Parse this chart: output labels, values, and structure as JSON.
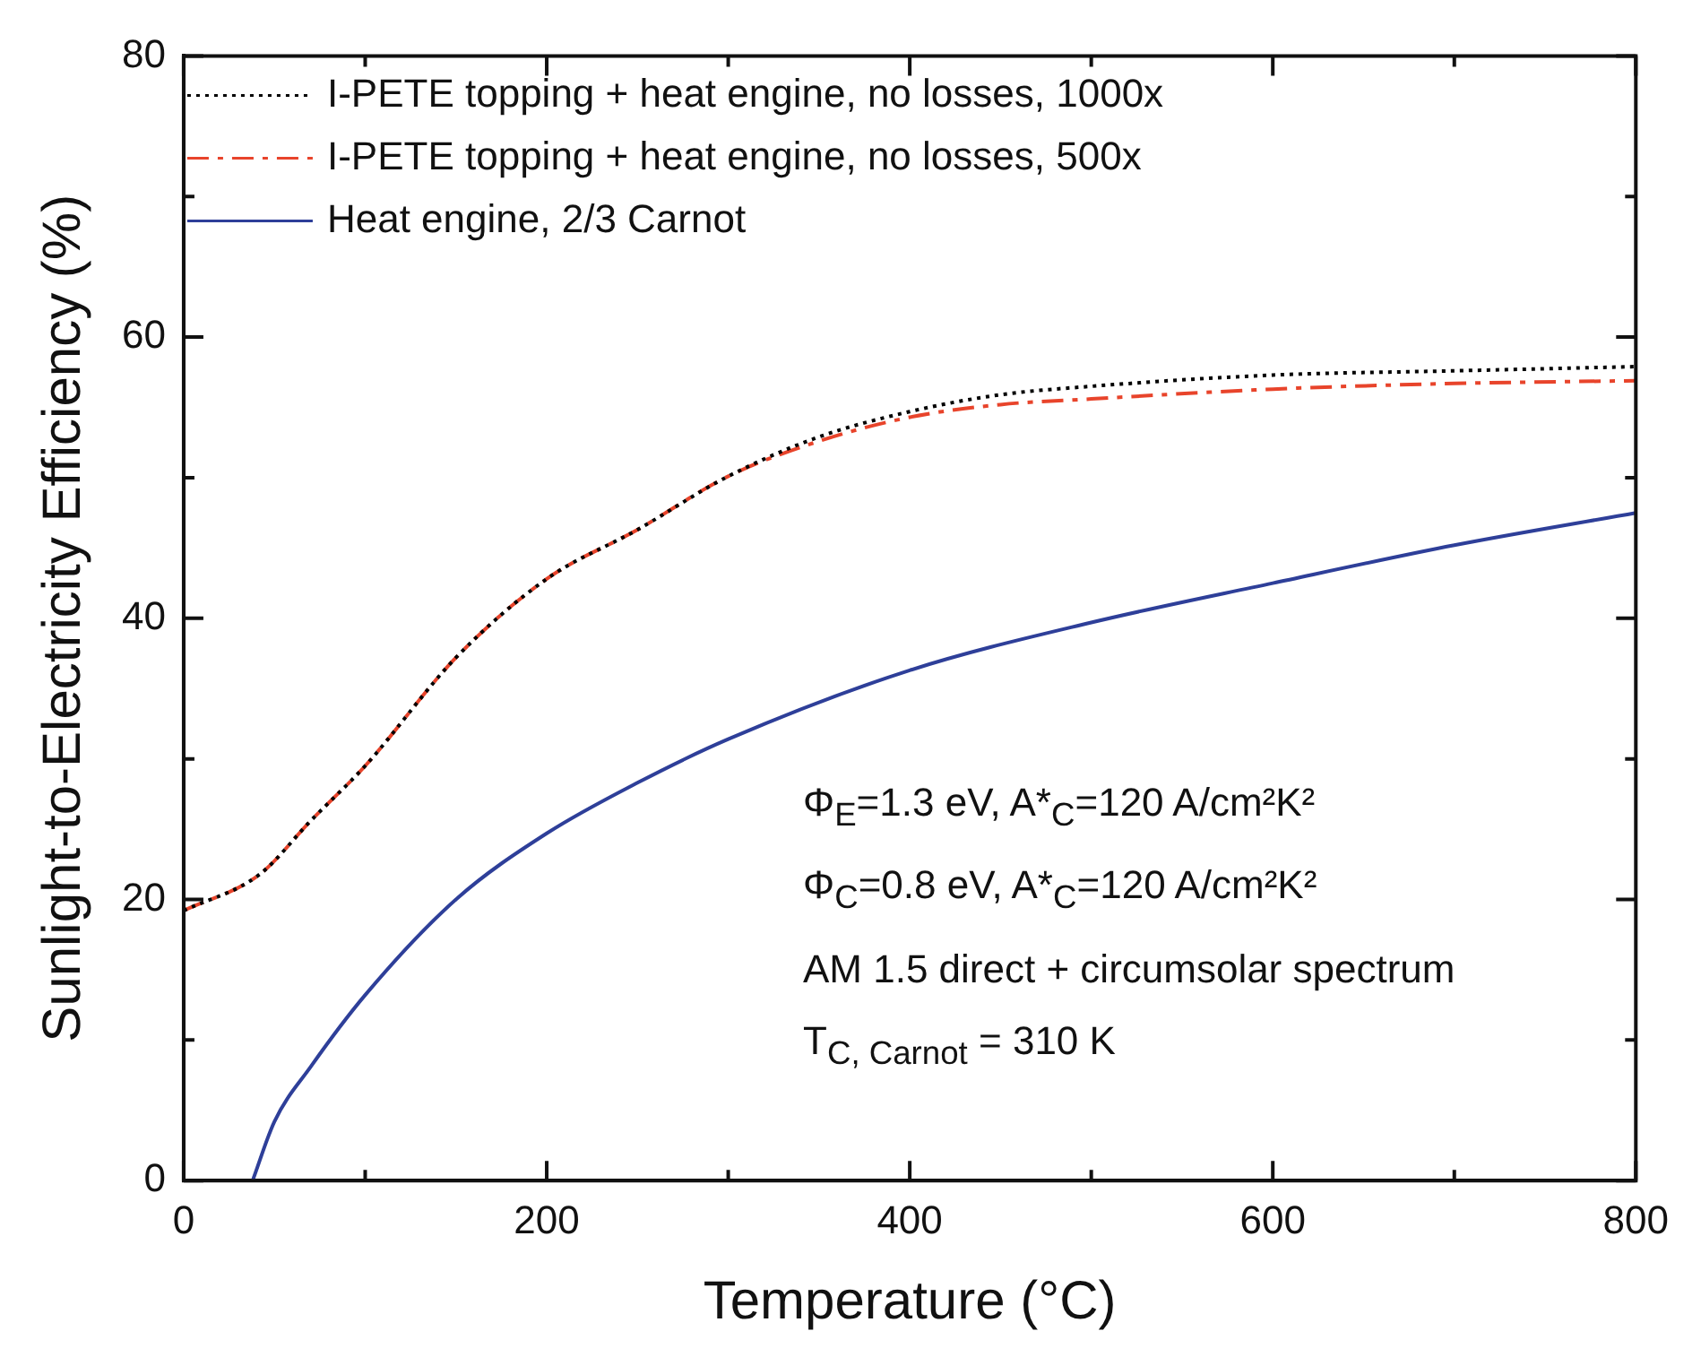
{
  "chart_data": {
    "type": "line",
    "xlabel": "Temperature (°C)",
    "ylabel": "Sunlight-to-Electricity Efficiency (%)",
    "xlim": [
      0,
      800
    ],
    "ylim": [
      0,
      80
    ],
    "xticks": [
      0,
      {
        "value": 100,
        "label": null
      },
      200,
      {
        "value": 300,
        "label": null
      },
      400,
      {
        "value": 500,
        "label": null
      },
      600,
      {
        "value": 700,
        "label": null
      },
      800
    ],
    "yticks": [
      0,
      {
        "value": 10,
        "label": null
      },
      20,
      {
        "value": 30,
        "label": null
      },
      40,
      {
        "value": 50,
        "label": null
      },
      60,
      {
        "value": 70,
        "label": null
      },
      80
    ],
    "legend": "top left",
    "marker": "none",
    "series": [
      {
        "name": "I-PETE topping + heat engine, no losses, 1000x",
        "color": "#000000",
        "line_style": "dotted",
        "x": [
          0,
          42,
          70,
          100,
          150,
          200,
          250,
          300,
          350,
          400,
          450,
          500,
          600,
          700,
          800
        ],
        "values": [
          19.2,
          21.8,
          25.6,
          29.5,
          37.2,
          42.8,
          46.3,
          50.1,
          52.9,
          54.7,
          55.9,
          56.5,
          57.3,
          57.6,
          57.9
        ]
      },
      {
        "name": "I-PETE topping + heat engine, no losses, 500x",
        "color": "#e8442b",
        "line_style": "dashed",
        "x": [
          0,
          42,
          70,
          100,
          150,
          200,
          250,
          300,
          350,
          400,
          450,
          500,
          600,
          700,
          800
        ],
        "values": [
          19.2,
          21.8,
          25.6,
          29.5,
          37.2,
          42.8,
          46.3,
          50.1,
          52.6,
          54.3,
          55.2,
          55.6,
          56.3,
          56.7,
          56.9
        ]
      },
      {
        "name": "Heat engine, 2/3 Carnot",
        "color": "#2e3f99",
        "line_style": "solid",
        "x": [
          38,
          50,
          70,
          100,
          150,
          200,
          250,
          300,
          400,
          500,
          600,
          700,
          800
        ],
        "values": [
          0,
          4.2,
          8.1,
          13.2,
          20.0,
          24.7,
          28.3,
          31.4,
          36.3,
          39.7,
          42.5,
          45.2,
          47.5
        ]
      }
    ],
    "annotations": [
      "Φ$_{E}$=1.3 eV, A*$_{C}$=120 A/cm²K²",
      "Φ$_{C}$=0.8 eV, A*$_{C}$=120 A/cm²K²",
      "AM 1.5 direct + circumsolar spectrum",
      "T$_{C, Carnot}$ = 310 K"
    ]
  }
}
